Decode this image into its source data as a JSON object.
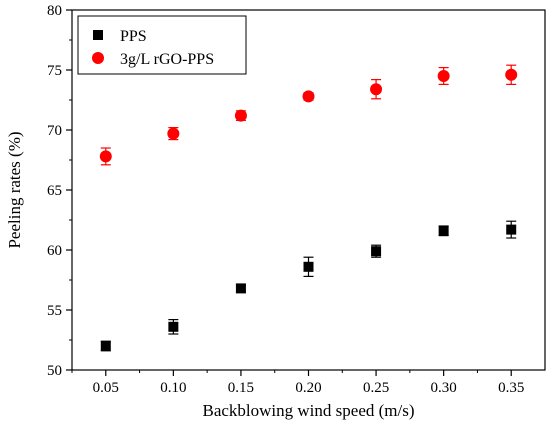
{
  "chart_data": {
    "type": "scatter",
    "xlabel": "Backblowing wind speed (m/s)",
    "ylabel": "Peeling rates (%)",
    "xlim": [
      0.025,
      0.375
    ],
    "ylim": [
      50,
      80
    ],
    "x_ticks": [
      "0.05",
      "0.10",
      "0.15",
      "0.20",
      "0.25",
      "0.30",
      "0.35"
    ],
    "y_ticks": [
      "50",
      "55",
      "60",
      "65",
      "70",
      "75",
      "80"
    ],
    "legend_position": "top-left",
    "series": [
      {
        "name": "PPS",
        "marker": "square",
        "color": "#000000",
        "x": [
          0.05,
          0.1,
          0.15,
          0.2,
          0.25,
          0.3,
          0.35
        ],
        "y": [
          52.0,
          53.6,
          56.8,
          58.6,
          59.9,
          61.6,
          61.7
        ],
        "error": [
          0.4,
          0.6,
          0.3,
          0.8,
          0.5,
          0.4,
          0.7
        ]
      },
      {
        "name": "3g/L rGO-PPS",
        "marker": "circle",
        "color": "#ff0000",
        "x": [
          0.05,
          0.1,
          0.15,
          0.2,
          0.25,
          0.3,
          0.35
        ],
        "y": [
          67.8,
          69.7,
          71.2,
          72.8,
          73.4,
          74.5,
          74.6
        ],
        "error": [
          0.7,
          0.5,
          0.4,
          0.3,
          0.8,
          0.7,
          0.8
        ]
      }
    ]
  }
}
